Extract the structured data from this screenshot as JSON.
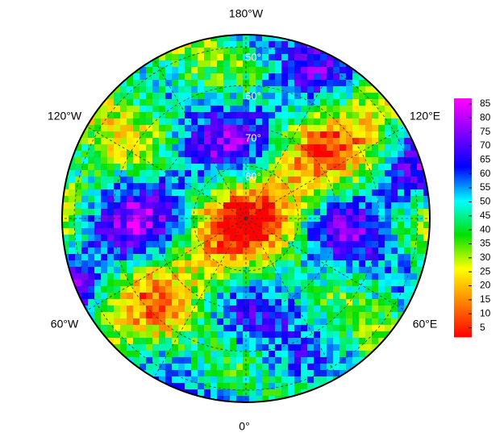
{
  "map": {
    "type": "polar-stereographic",
    "longitude_labels": [
      "180°W",
      "120°W",
      "120°E",
      "60°W",
      "60°E",
      "0°"
    ],
    "latitude_labels": [
      "50°",
      "60°",
      "70°",
      "80°"
    ],
    "colorbar": {
      "ticks": [
        5,
        10,
        15,
        20,
        25,
        30,
        35,
        40,
        45,
        50,
        55,
        60,
        65,
        70,
        75,
        80,
        85
      ],
      "lim": [
        2,
        87
      ],
      "colors": [
        "#ff0000",
        "#ff8000",
        "#ffff00",
        "#00e000",
        "#00ffff",
        "#0000ff",
        "#8000ff",
        "#ff00ff"
      ]
    }
  }
}
